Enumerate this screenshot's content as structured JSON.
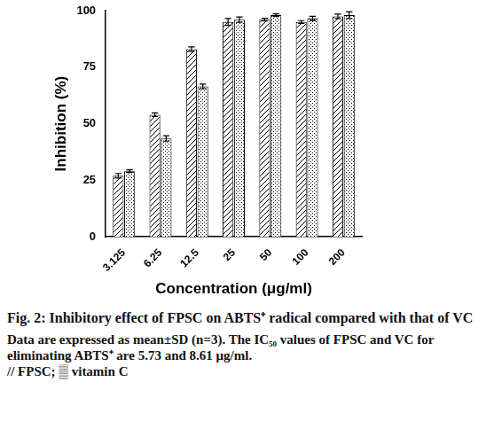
{
  "chart_data": {
    "type": "bar",
    "title": "Fig. 2: Inhibitory effect of FPSC on ABTS⁺ radical compared with that of VC",
    "annotations": [
      "Data are expressed as mean±SD (n=3). The IC₅₀ values of FPSC and VC for eliminating ABTS⁺ are 5.73 and 8.61 μg/ml.",
      "// FPSC; ▒ vitamin C"
    ],
    "x_label": "Concentration (μg/ml)",
    "y_label": "Inhibition (%)",
    "categories": [
      "3.125",
      "6.25",
      "12.5",
      "25",
      "50",
      "100",
      "200"
    ],
    "series": [
      {
        "name": "FPSC",
        "color": "#000000",
        "values": [
          27,
          54,
          83,
          95,
          96,
          95,
          97.5
        ],
        "errors": [
          1,
          0.8,
          1,
          1.5,
          0.6,
          0.6,
          1
        ]
      },
      {
        "name": "vitamin C",
        "color": "#000000",
        "values": [
          29,
          43.5,
          66.5,
          96,
          98,
          96.5,
          98
        ],
        "errors": [
          0.6,
          1.2,
          1,
          1.2,
          0.6,
          1,
          1.5
        ]
      }
    ],
    "ylim": [
      0,
      100
    ],
    "yticks": [
      0,
      25,
      50,
      75,
      100
    ],
    "grid": false
  }
}
